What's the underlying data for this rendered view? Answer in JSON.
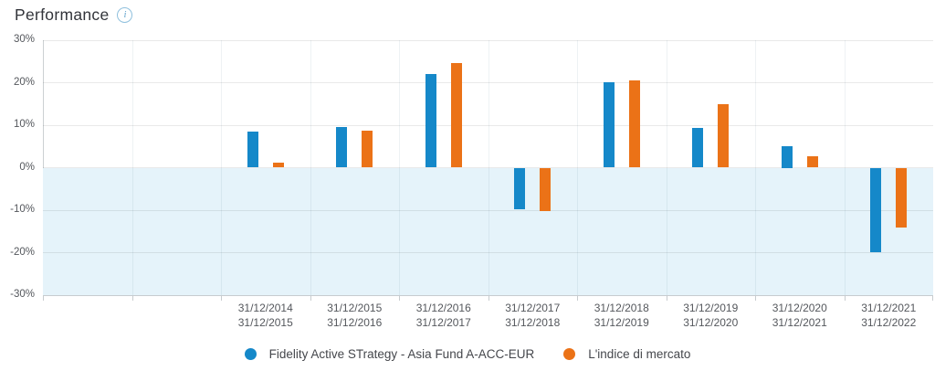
{
  "header": {
    "title": "Performance"
  },
  "chart_data": {
    "type": "bar",
    "title": "Performance",
    "categories": [
      {
        "line1": "31/12/2014",
        "line2": "31/12/2015"
      },
      {
        "line1": "31/12/2015",
        "line2": "31/12/2016"
      },
      {
        "line1": "31/12/2016",
        "line2": "31/12/2017"
      },
      {
        "line1": "31/12/2017",
        "line2": "31/12/2018"
      },
      {
        "line1": "31/12/2018",
        "line2": "31/12/2019"
      },
      {
        "line1": "31/12/2019",
        "line2": "31/12/2020"
      },
      {
        "line1": "31/12/2020",
        "line2": "31/12/2021"
      },
      {
        "line1": "31/12/2021",
        "line2": "31/12/2022"
      }
    ],
    "series": [
      {
        "name": "Fidelity Active STrategy - Asia Fund A-ACC-EUR",
        "color": "#1588c9",
        "values": [
          8.5,
          9.5,
          22.1,
          -9.8,
          20.1,
          9.4,
          5.0,
          -19.8
        ]
      },
      {
        "name": "L'indice di mercato",
        "color": "#eb7217",
        "values": [
          1.2,
          8.7,
          24.6,
          -10.3,
          20.6,
          14.9,
          2.6,
          -14.0
        ]
      }
    ],
    "xlabel": "",
    "ylabel": "",
    "ylim": [
      -30,
      30
    ],
    "yticks": [
      30,
      20,
      10,
      0,
      -10,
      -20,
      -30
    ],
    "ytick_suffix": "%",
    "grid": true,
    "legend_position": "bottom",
    "negative_region_color": "#e5f3fa",
    "layout": {
      "total_slots": 10,
      "leading_empty_slots": 2
    }
  }
}
